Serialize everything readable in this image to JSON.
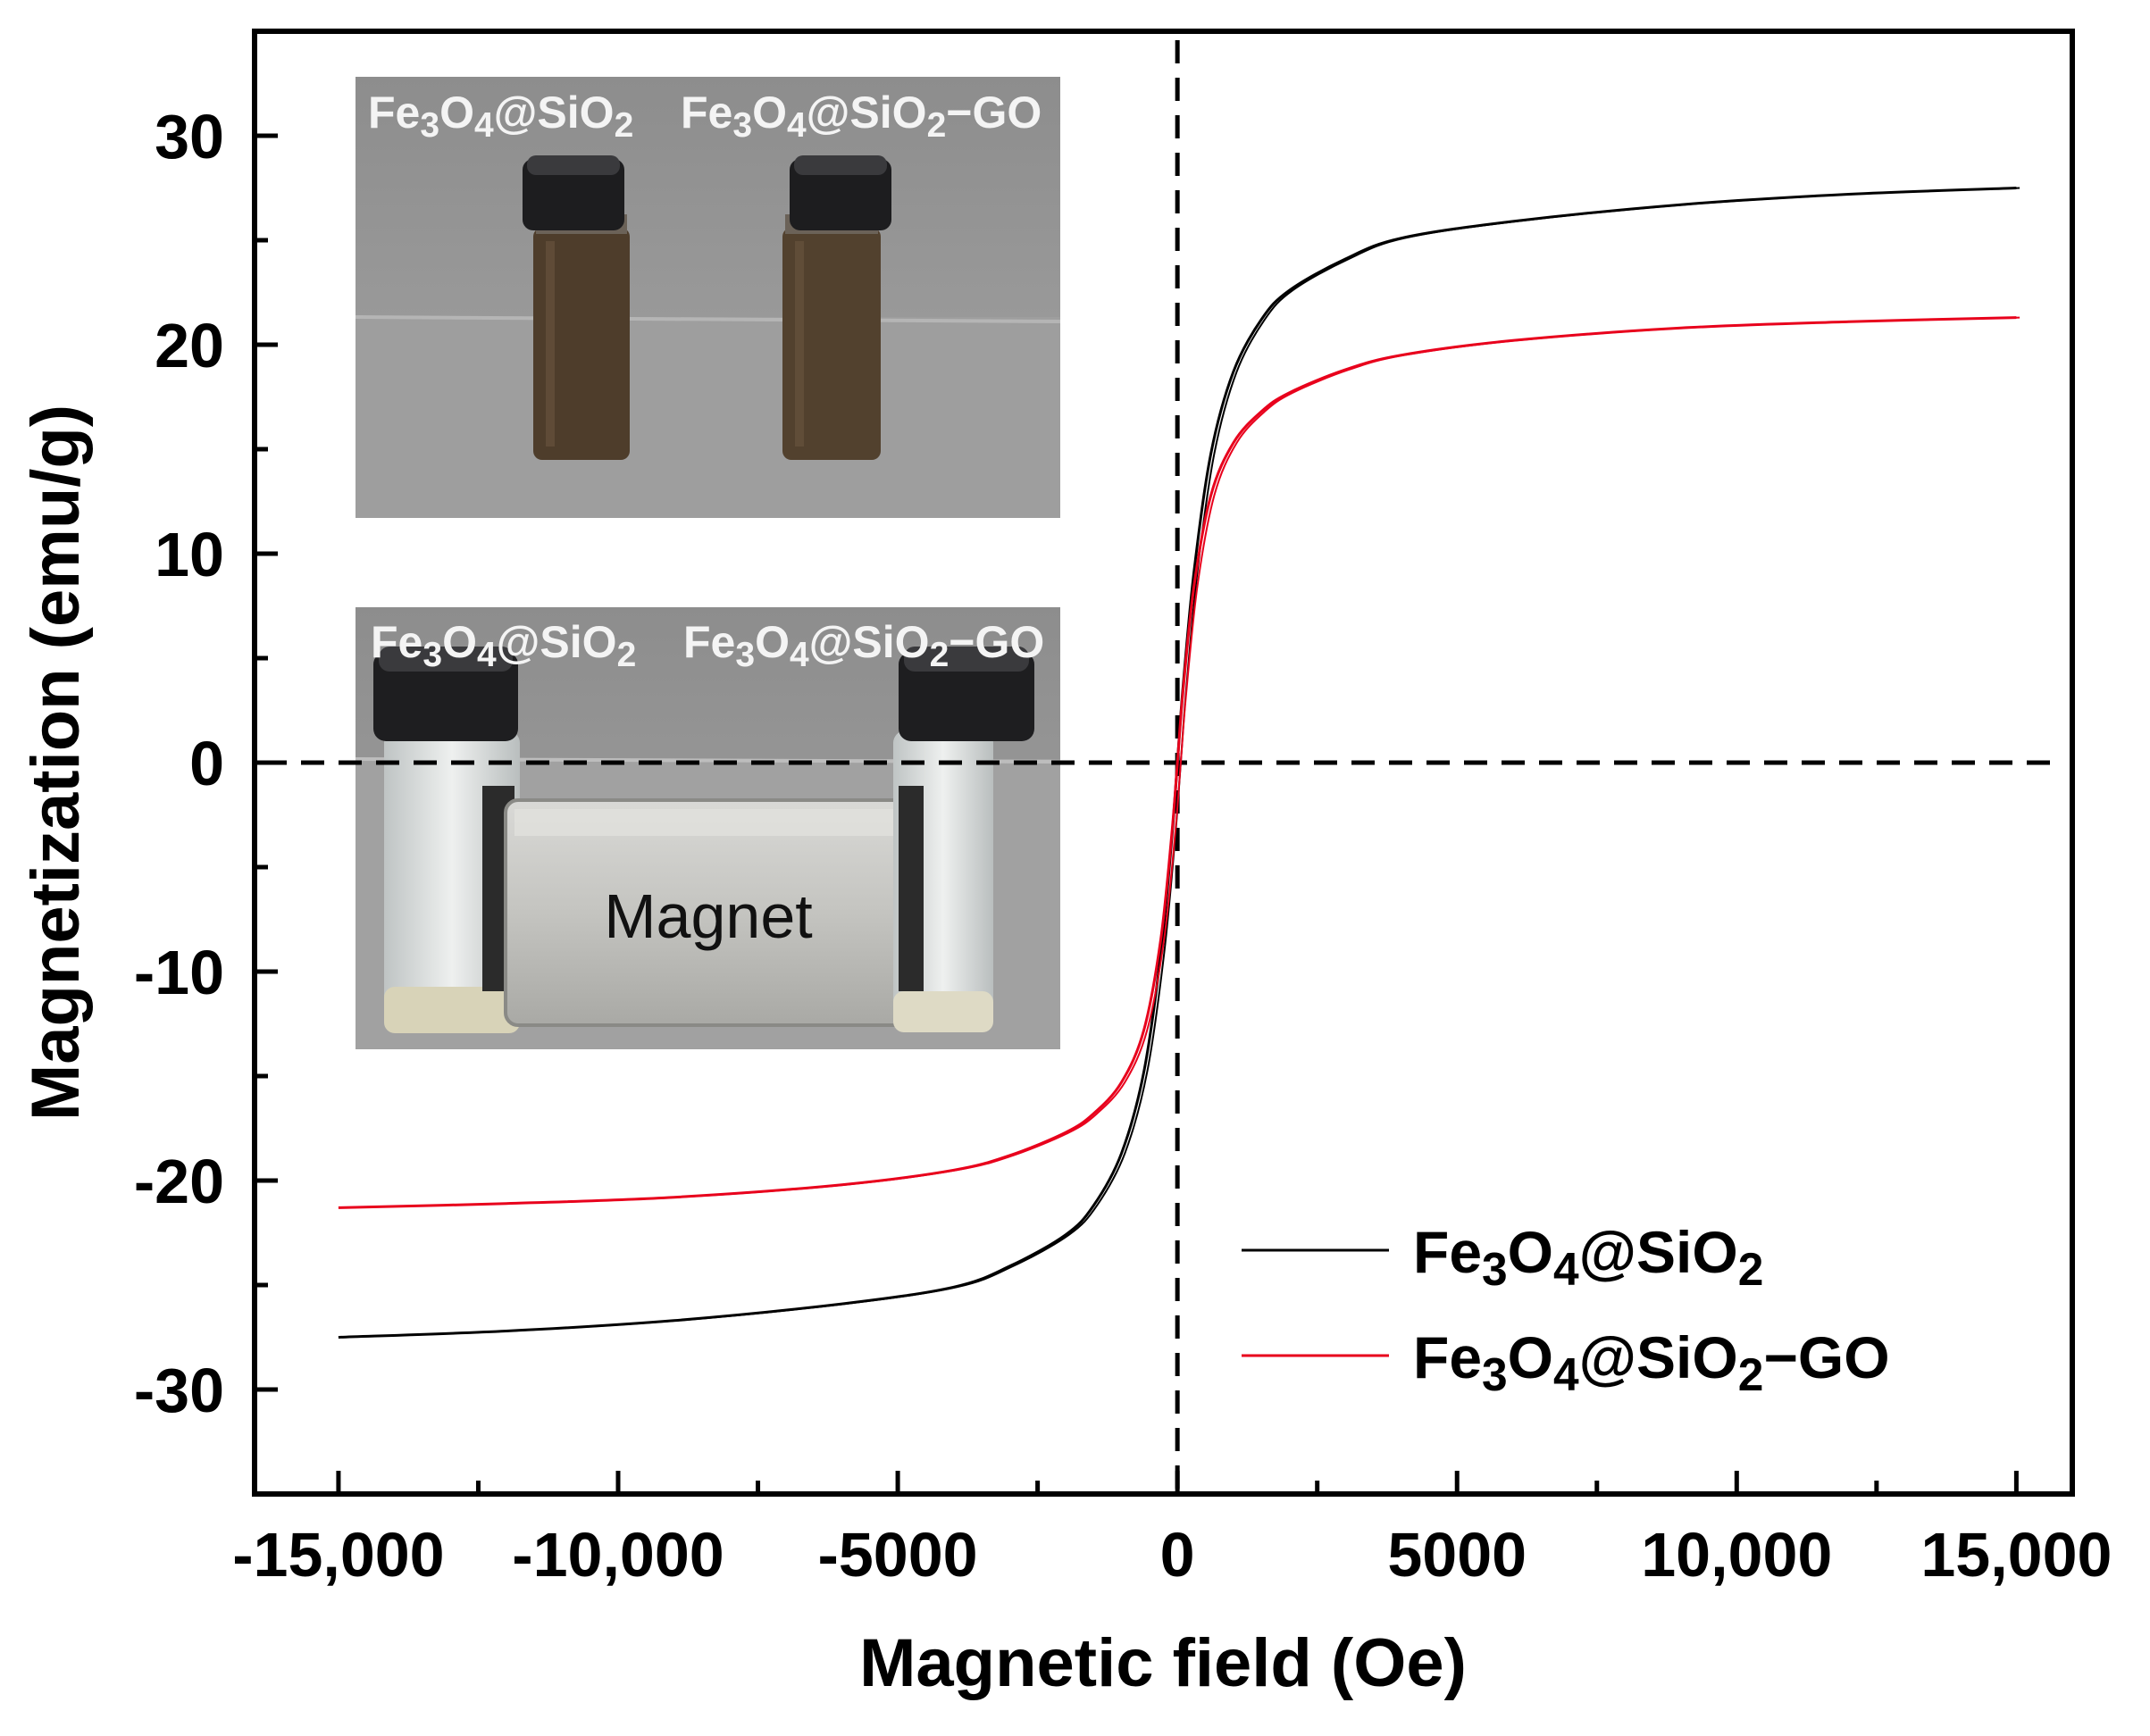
{
  "chart_data": {
    "type": "line",
    "title": "",
    "xlabel": "Magnetic field (Oe)",
    "ylabel": "Magnetization (emu/g)",
    "xlim": [
      -16500,
      16000
    ],
    "ylim": [
      -35,
      35
    ],
    "x_ticks": [
      -15000,
      -10000,
      -5000,
      0,
      5000,
      10000,
      15000
    ],
    "x_tick_labels": [
      "-15,000",
      "-10,000",
      "-5000",
      "0",
      "5000",
      "10,000",
      "15,000"
    ],
    "y_ticks": [
      -30,
      -20,
      -10,
      0,
      10,
      20,
      30
    ],
    "y_tick_labels": [
      "-30",
      "-20",
      "-10",
      "0",
      "10",
      "20",
      "30"
    ],
    "grid": false,
    "reference_lines": [
      "x = 0 (dashed)",
      "y = 0 (dashed)"
    ],
    "legend_position": "bottom-right",
    "series": [
      {
        "name": "Fe3O4@SiO2",
        "color": "#000000",
        "x": [
          -15000,
          -12000,
          -9000,
          -6000,
          -4000,
          -3000,
          -2000,
          -1500,
          -1000,
          -600,
          -300,
          -100,
          0,
          100,
          300,
          600,
          1000,
          1500,
          2000,
          3000,
          4000,
          6000,
          9000,
          12000,
          15000
        ],
        "y": [
          -27.5,
          -27.2,
          -26.7,
          -25.9,
          -25.1,
          -24.1,
          -22.6,
          -21.2,
          -18.7,
          -14.8,
          -9.2,
          -3.6,
          0,
          3.6,
          9.2,
          14.8,
          18.7,
          21.2,
          22.6,
          24.1,
          25.1,
          25.9,
          26.7,
          27.2,
          27.5
        ]
      },
      {
        "name": "Fe3O4@SiO2−GO",
        "color": "#e8001c",
        "x": [
          -15000,
          -12000,
          -9000,
          -6000,
          -4000,
          -3000,
          -2000,
          -1500,
          -1000,
          -600,
          -300,
          -100,
          0,
          100,
          300,
          600,
          1000,
          1500,
          2000,
          3000,
          4000,
          6000,
          9000,
          12000,
          15000
        ],
        "y": [
          -21.3,
          -21.1,
          -20.8,
          -20.2,
          -19.5,
          -18.8,
          -17.7,
          -16.8,
          -15.3,
          -12.8,
          -8.5,
          -3.4,
          0,
          3.4,
          8.5,
          12.8,
          15.3,
          16.8,
          17.7,
          18.8,
          19.5,
          20.2,
          20.8,
          21.1,
          21.3
        ]
      }
    ],
    "legend": [
      {
        "formula": [
          [
            "Fe",
            ""
          ],
          [
            "3",
            "sub"
          ],
          [
            "O",
            ""
          ],
          [
            "4",
            "sub"
          ],
          [
            "@SiO",
            ""
          ],
          [
            "2",
            "sub"
          ]
        ]
      },
      {
        "formula": [
          [
            "Fe",
            ""
          ],
          [
            "3",
            "sub"
          ],
          [
            "O",
            ""
          ],
          [
            "4",
            "sub"
          ],
          [
            "@SiO",
            ""
          ],
          [
            "2",
            "sub"
          ],
          [
            "−GO",
            ""
          ]
        ]
      }
    ]
  },
  "inset_photos": [
    {
      "captions": [
        [
          [
            "Fe",
            ""
          ],
          [
            "3",
            "sub"
          ],
          [
            "O",
            ""
          ],
          [
            "4",
            "sub"
          ],
          [
            "@SiO",
            ""
          ],
          [
            "2",
            "sub"
          ]
        ],
        [
          [
            "Fe",
            ""
          ],
          [
            "3",
            "sub"
          ],
          [
            "O",
            ""
          ],
          [
            "4",
            "sub"
          ],
          [
            "@SiO",
            ""
          ],
          [
            "2",
            "sub"
          ],
          [
            "−GO",
            ""
          ]
        ]
      ],
      "background": "#8c8c8c",
      "liquid_color": "#4e3d2b"
    },
    {
      "captions": [
        [
          [
            "Fe",
            ""
          ],
          [
            "3",
            "sub"
          ],
          [
            "O",
            ""
          ],
          [
            "4",
            "sub"
          ],
          [
            "@SiO",
            ""
          ],
          [
            "2",
            "sub"
          ]
        ],
        [
          [
            "Fe",
            ""
          ],
          [
            "3",
            "sub"
          ],
          [
            "O",
            ""
          ],
          [
            "4",
            "sub"
          ],
          [
            "@SiO",
            ""
          ],
          [
            "2",
            "sub"
          ],
          [
            "−GO",
            ""
          ]
        ]
      ],
      "magnet_label": "Magnet",
      "background": "#9a9a9a",
      "liquid_color": "#d8d3b8"
    }
  ]
}
